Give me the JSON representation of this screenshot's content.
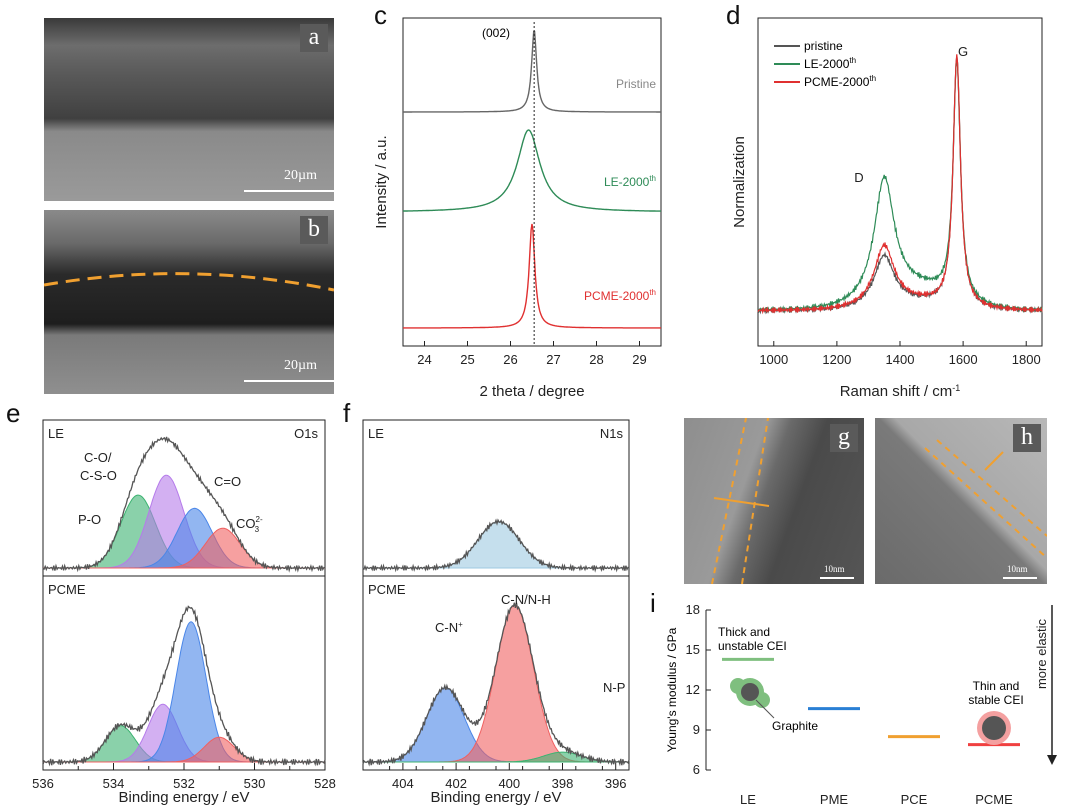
{
  "panels": {
    "a": {
      "letter": "a",
      "scale": "20µm"
    },
    "b": {
      "letter": "b",
      "scale": "20µm"
    },
    "g": {
      "letter": "g",
      "scale": "10nm"
    },
    "h": {
      "letter": "h",
      "scale": "10nm"
    },
    "c": {
      "letter": "c"
    },
    "d": {
      "letter": "d"
    },
    "e": {
      "letter": "e"
    },
    "f": {
      "letter": "f"
    },
    "i": {
      "letter": "i"
    }
  },
  "chart_data": [
    {
      "id": "c",
      "type": "line",
      "xlabel": "2 theta / degree",
      "ylabel": "Intensity / a.u.",
      "xlim": [
        23.5,
        29.5
      ],
      "xticks": [
        24,
        25,
        26,
        27,
        28,
        29
      ],
      "annotation": "(002)",
      "reference_line_x": 26.55,
      "series": [
        {
          "name": "Pristine",
          "color": "#666666",
          "peak_x": 26.55,
          "width": 0.07
        },
        {
          "name": "LE-2000th",
          "color": "#2e8b57",
          "peak_x": 26.42,
          "width": 0.32
        },
        {
          "name": "PCME-2000th",
          "color": "#e03030",
          "peak_x": 26.5,
          "width": 0.08
        }
      ]
    },
    {
      "id": "d",
      "type": "line",
      "xlabel": "Raman shift / cm-1",
      "ylabel": "Normalization",
      "xlim": [
        950,
        1850
      ],
      "xticks": [
        1000,
        1200,
        1400,
        1600,
        1800
      ],
      "peak_labels": [
        {
          "text": "D",
          "x": 1350
        },
        {
          "text": "G",
          "x": 1580
        }
      ],
      "series": [
        {
          "name": "pristine",
          "color": "#555555",
          "D": 0.2,
          "G": 1.0
        },
        {
          "name": "LE-2000th",
          "color": "#2e8b57",
          "D": 0.48,
          "G": 0.95
        },
        {
          "name": "PCME-2000th",
          "color": "#e03030",
          "D": 0.24,
          "G": 1.0
        }
      ]
    },
    {
      "id": "e",
      "type": "area",
      "xlabel": "Binding energy / eV",
      "xlim": [
        536,
        528
      ],
      "xticks": [
        536,
        535,
        534,
        533,
        532,
        531,
        530,
        529,
        528
      ],
      "tick_labels": [
        536,
        534,
        532,
        530,
        528
      ],
      "title": "O1s",
      "subplots": [
        {
          "label": "LE",
          "peaks": [
            {
              "name": "P-O",
              "center": 533.3,
              "height": 0.55,
              "color": "#3cb371"
            },
            {
              "name": "C-O/ C-S-O",
              "center": 532.5,
              "height": 0.7,
              "color": "#b57bea"
            },
            {
              "name": "C=O",
              "center": 531.7,
              "height": 0.45,
              "color": "#4a86e8"
            },
            {
              "name": "CO32-",
              "center": 530.9,
              "height": 0.3,
              "color": "#f06060"
            }
          ]
        },
        {
          "label": "PCME",
          "peaks": [
            {
              "name": "",
              "center": 533.8,
              "height": 0.22,
              "color": "#3cb371"
            },
            {
              "name": "",
              "center": 532.6,
              "height": 0.35,
              "color": "#b57bea"
            },
            {
              "name": "",
              "center": 531.8,
              "height": 0.85,
              "color": "#4a86e8"
            },
            {
              "name": "",
              "center": 531.0,
              "height": 0.15,
              "color": "#f06060"
            }
          ]
        }
      ],
      "labels": {
        "po": "P-O",
        "co1": "C-O/",
        "co2": "C-S-O",
        "ceo": "C=O",
        "co3": "CO",
        "co3sup": "2-",
        "co3sub": "3"
      }
    },
    {
      "id": "f",
      "type": "area",
      "xlabel": "Binding energy / eV",
      "xlim": [
        405.5,
        395.5
      ],
      "tick_labels": [
        404,
        402,
        400,
        398,
        396
      ],
      "title": "N1s",
      "subplots": [
        {
          "label": "LE",
          "peaks": [
            {
              "name": "",
              "center": 400.4,
              "height": 0.35,
              "color": "#9ecae1"
            }
          ]
        },
        {
          "label": "PCME",
          "peaks": [
            {
              "name": "C-N+",
              "center": 402.4,
              "height": 0.45,
              "color": "#4a86e8"
            },
            {
              "name": "C-N/N-H",
              "center": 399.8,
              "height": 0.95,
              "color": "#f06060"
            },
            {
              "name": "N-P",
              "center": 398.0,
              "height": 0.06,
              "color": "#3cb371"
            }
          ]
        }
      ],
      "labels": {
        "cn": "C-N",
        "cnsup": "+",
        "cnnh": "C-N/N-H",
        "np": "N-P"
      }
    },
    {
      "id": "i",
      "type": "bar",
      "ylabel": "Young's modulus / GPa",
      "ylim": [
        6,
        18
      ],
      "yticks": [
        6,
        9,
        12,
        15,
        18
      ],
      "categories": [
        "LE",
        "PME",
        "PCE",
        "PCME"
      ],
      "values": [
        14.3,
        10.6,
        8.5,
        7.9
      ],
      "colors": [
        "#7fbf7f",
        "#2a7fd4",
        "#f0a030",
        "#f04040"
      ],
      "annotations": {
        "le1": "Thick and",
        "le2": "unstable CEI",
        "pcme1": "Thin and",
        "pcme2": "stable CEI",
        "graphite": "Graphite",
        "arrow": "more elastic"
      }
    }
  ],
  "legend_c": {
    "pristine": "Pristine",
    "le": "LE-2000",
    "le_sup": "th",
    "pcme": "PCME-2000",
    "pcme_sup": "th"
  },
  "legend_d": {
    "pristine": "pristine",
    "le": "LE-2000",
    "le_sup": "th",
    "pcme": "PCME-2000",
    "pcme_sup": "th"
  }
}
